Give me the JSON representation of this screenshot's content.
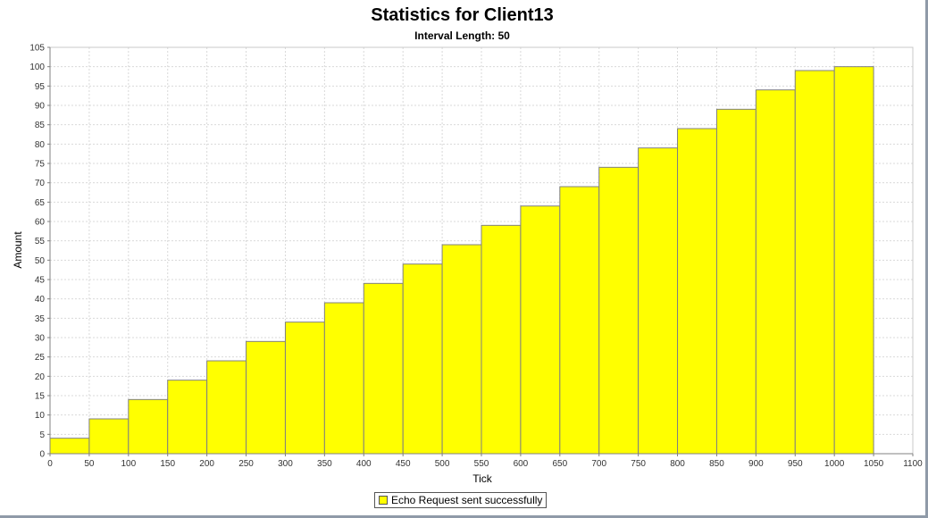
{
  "chart_data": {
    "type": "bar",
    "title": "Statistics for Client13",
    "subtitle": "Interval Length: 50",
    "xlabel": "Tick",
    "ylabel": "Amount",
    "xlim": [
      0,
      1100
    ],
    "ylim": [
      0,
      105
    ],
    "x_ticks": [
      0,
      50,
      100,
      150,
      200,
      250,
      300,
      350,
      400,
      450,
      500,
      550,
      600,
      650,
      700,
      750,
      800,
      850,
      900,
      950,
      1000,
      1050,
      1100
    ],
    "y_ticks": [
      0,
      5,
      10,
      15,
      20,
      25,
      30,
      35,
      40,
      45,
      50,
      55,
      60,
      65,
      70,
      75,
      80,
      85,
      90,
      95,
      100,
      105
    ],
    "grid": true,
    "legend_position": "bottom-center",
    "series": [
      {
        "name": "Echo Request sent successfully",
        "color": "#ffff00",
        "bins": [
          {
            "start": 0,
            "end": 50,
            "value": 4
          },
          {
            "start": 50,
            "end": 100,
            "value": 9
          },
          {
            "start": 100,
            "end": 150,
            "value": 14
          },
          {
            "start": 150,
            "end": 200,
            "value": 19
          },
          {
            "start": 200,
            "end": 250,
            "value": 24
          },
          {
            "start": 250,
            "end": 300,
            "value": 29
          },
          {
            "start": 300,
            "end": 350,
            "value": 34
          },
          {
            "start": 350,
            "end": 400,
            "value": 39
          },
          {
            "start": 400,
            "end": 450,
            "value": 44
          },
          {
            "start": 450,
            "end": 500,
            "value": 49
          },
          {
            "start": 500,
            "end": 550,
            "value": 54
          },
          {
            "start": 550,
            "end": 600,
            "value": 59
          },
          {
            "start": 600,
            "end": 650,
            "value": 64
          },
          {
            "start": 650,
            "end": 700,
            "value": 69
          },
          {
            "start": 700,
            "end": 750,
            "value": 74
          },
          {
            "start": 750,
            "end": 800,
            "value": 79
          },
          {
            "start": 800,
            "end": 850,
            "value": 84
          },
          {
            "start": 850,
            "end": 900,
            "value": 89
          },
          {
            "start": 900,
            "end": 950,
            "value": 94
          },
          {
            "start": 950,
            "end": 1000,
            "value": 99
          },
          {
            "start": 1000,
            "end": 1050,
            "value": 100
          }
        ]
      }
    ]
  }
}
